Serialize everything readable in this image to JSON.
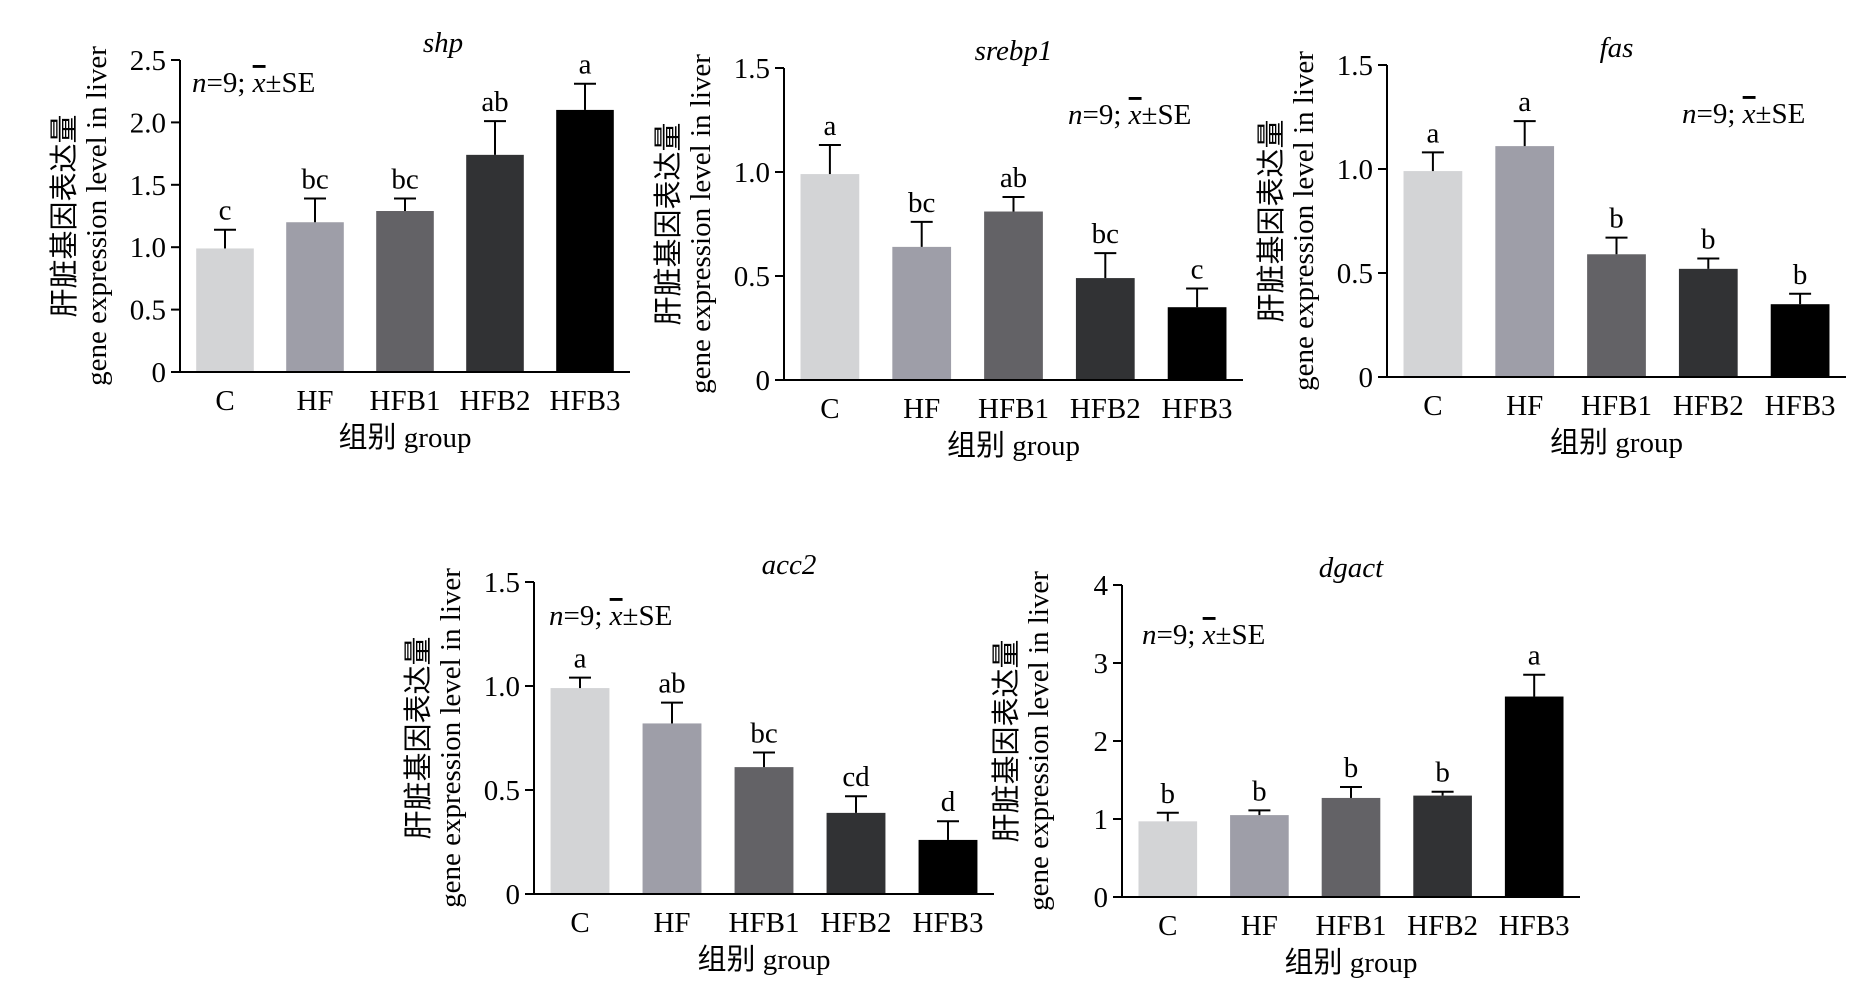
{
  "figure": {
    "xlabel": "组别 group",
    "ylabel_line1": "肝脏基因表达量",
    "ylabel_line2": "gene expression level in liver",
    "annotation_prefix": "n",
    "annotation_mid": "=9; ",
    "annotation_xbar": "x",
    "annotation_suffix": "±SE",
    "colors": [
      "#d3d4d6",
      "#9e9ea8",
      "#636266",
      "#313234",
      "#000000"
    ]
  },
  "chart_data": [
    {
      "type": "bar",
      "title": "shp",
      "categories": [
        "C",
        "HF",
        "HFB1",
        "HFB2",
        "HFB3"
      ],
      "values": [
        0.99,
        1.2,
        1.29,
        1.74,
        2.1
      ],
      "errors": [
        0.15,
        0.19,
        0.1,
        0.27,
        0.21
      ],
      "letters": [
        "c",
        "bc",
        "bc",
        "ab",
        "a"
      ],
      "ylim": [
        0,
        2.5
      ],
      "yticks": [
        0,
        0.5,
        1.0,
        1.5,
        2.0,
        2.5
      ],
      "ytick_labels": [
        "0",
        "0.5",
        "1.0",
        "1.5",
        "2.0",
        "2.5"
      ]
    },
    {
      "type": "bar",
      "title": "srebp1",
      "categories": [
        "C",
        "HF",
        "HFB1",
        "HFB2",
        "HFB3"
      ],
      "values": [
        0.99,
        0.64,
        0.81,
        0.49,
        0.35
      ],
      "errors": [
        0.14,
        0.12,
        0.07,
        0.12,
        0.09
      ],
      "letters": [
        "a",
        "bc",
        "ab",
        "bc",
        "c"
      ],
      "ylim": [
        0,
        1.5
      ],
      "yticks": [
        0,
        0.5,
        1.0,
        1.5
      ],
      "ytick_labels": [
        "0",
        "0.5",
        "1.0",
        "1.5"
      ]
    },
    {
      "type": "bar",
      "title": "fas",
      "categories": [
        "C",
        "HF",
        "HFB1",
        "HFB2",
        "HFB3"
      ],
      "values": [
        0.99,
        1.11,
        0.59,
        0.52,
        0.35
      ],
      "errors": [
        0.09,
        0.12,
        0.08,
        0.05,
        0.05
      ],
      "letters": [
        "a",
        "a",
        "b",
        "b",
        "b"
      ],
      "ylim": [
        0,
        1.5
      ],
      "yticks": [
        0,
        0.5,
        1.0,
        1.5
      ],
      "ytick_labels": [
        "0",
        "0.5",
        "1.0",
        "1.5"
      ]
    },
    {
      "type": "bar",
      "title": "acc2",
      "categories": [
        "C",
        "HF",
        "HFB1",
        "HFB2",
        "HFB3"
      ],
      "values": [
        0.99,
        0.82,
        0.61,
        0.39,
        0.26
      ],
      "errors": [
        0.05,
        0.1,
        0.07,
        0.08,
        0.09
      ],
      "letters": [
        "a",
        "ab",
        "bc",
        "cd",
        "d"
      ],
      "ylim": [
        0,
        1.5
      ],
      "yticks": [
        0,
        0.5,
        1.0,
        1.5
      ],
      "ytick_labels": [
        "0",
        "0.5",
        "1.0",
        "1.5"
      ]
    },
    {
      "type": "bar",
      "title": "dgact",
      "categories": [
        "C",
        "HF",
        "HFB1",
        "HFB2",
        "HFB3"
      ],
      "values": [
        0.97,
        1.05,
        1.27,
        1.3,
        2.57
      ],
      "errors": [
        0.11,
        0.06,
        0.14,
        0.05,
        0.28
      ],
      "letters": [
        "b",
        "b",
        "b",
        "b",
        "a"
      ],
      "ylim": [
        0,
        4
      ],
      "yticks": [
        0,
        1,
        2,
        3,
        4
      ],
      "ytick_labels": [
        "0",
        "1",
        "2",
        "3",
        "4"
      ]
    }
  ]
}
